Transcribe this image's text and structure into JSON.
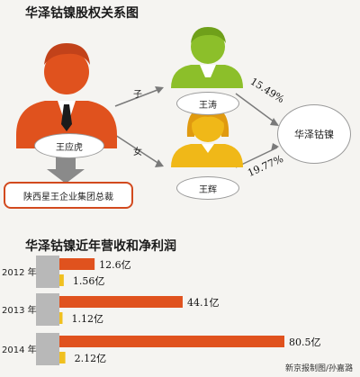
{
  "diagram": {
    "title": "华泽钴镍股权关系图",
    "father": "王应虎",
    "son": "王涛",
    "daughter": "王辉",
    "company": "华泽钴镍",
    "group": "陕西星王企业集团总裁",
    "rel_son": "子",
    "rel_daughter": "女",
    "pct_son": "15.49%",
    "pct_daughter": "19.77%",
    "colors": {
      "father": "#e0521e",
      "son": "#8cbf2a",
      "daughter": "#f0b818",
      "line": "#7a7a7a"
    }
  },
  "chart_title": "华泽钴镍近年营收和净利润",
  "chart_data": {
    "type": "bar",
    "title": "华泽钴镍近年营收和净利润",
    "categories": [
      "2012 年",
      "2013 年",
      "2014 年"
    ],
    "series": [
      {
        "values": [
          12.6,
          44.1,
          80.5
        ],
        "color": "#e0521e"
      },
      {
        "values": [
          1.56,
          1.12,
          2.12
        ],
        "color": "#f0c020"
      }
    ],
    "value_labels": [
      [
        "12.6亿",
        "44.1亿",
        "80.5亿"
      ],
      [
        "1.56亿",
        "1.12亿",
        "2.12亿"
      ]
    ],
    "xlim": [
      0,
      80.5
    ]
  },
  "credit": "新京报制图/孙嘉潞"
}
